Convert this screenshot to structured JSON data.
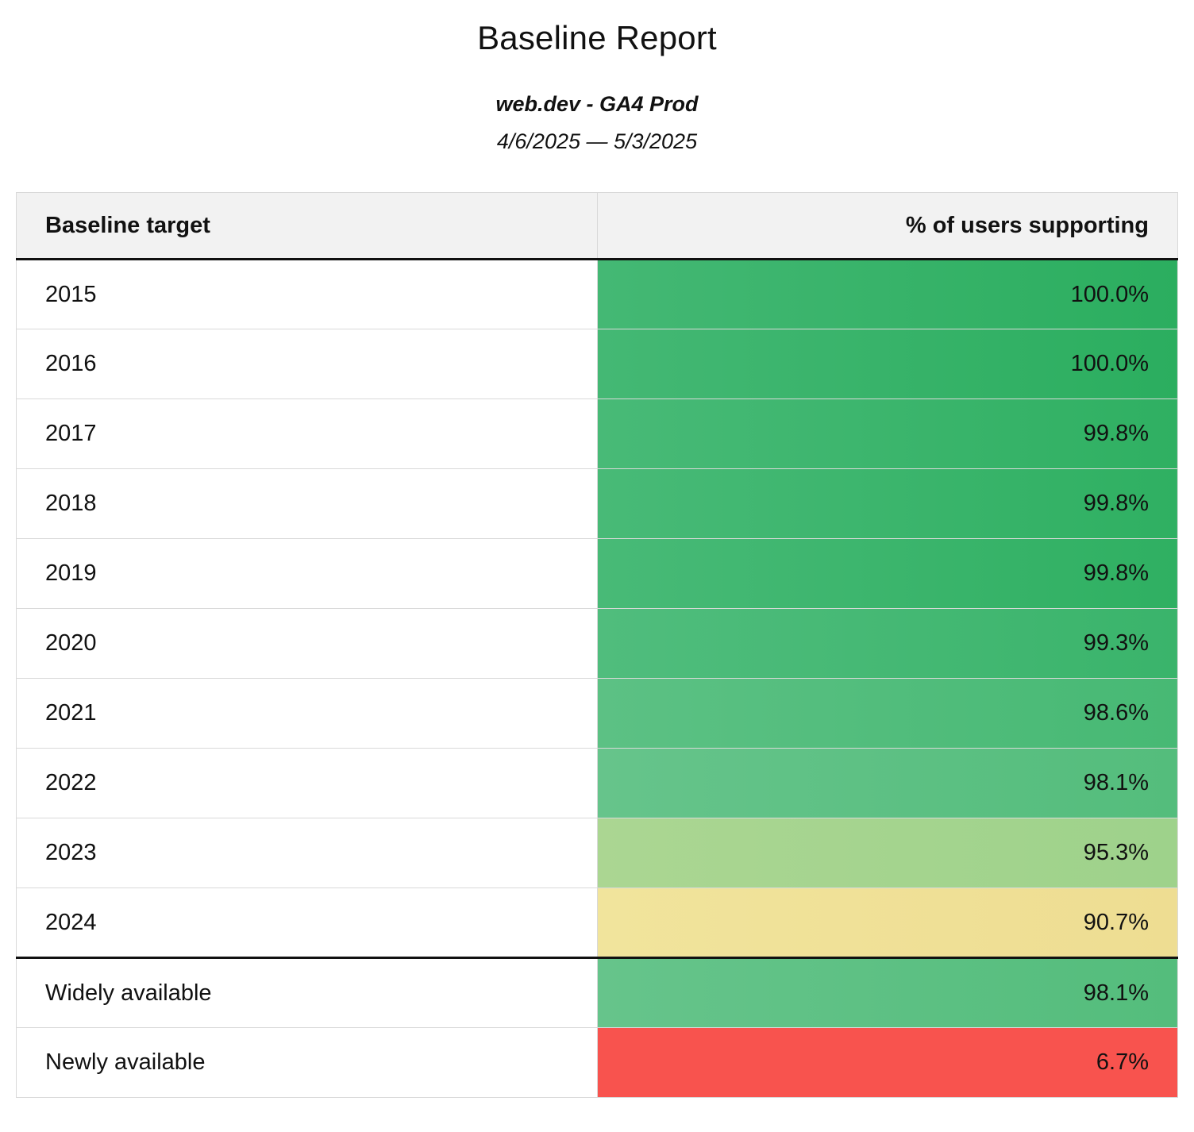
{
  "report": {
    "title": "Baseline Report",
    "subtitle": "web.dev - GA4 Prod",
    "date_range": "4/6/2025 — 5/3/2025"
  },
  "table": {
    "columns": [
      "Baseline target",
      "% of users supporting"
    ],
    "rows": [
      {
        "label": "2015",
        "value": "100.0%",
        "color_start": "#44b874",
        "color_end": "#2bae5f"
      },
      {
        "label": "2016",
        "value": "100.0%",
        "color_start": "#44b874",
        "color_end": "#2bae5f"
      },
      {
        "label": "2017",
        "value": "99.8%",
        "color_start": "#48ba77",
        "color_end": "#2fb062"
      },
      {
        "label": "2018",
        "value": "99.8%",
        "color_start": "#48ba77",
        "color_end": "#2fb062"
      },
      {
        "label": "2019",
        "value": "99.8%",
        "color_start": "#48ba77",
        "color_end": "#2fb062"
      },
      {
        "label": "2020",
        "value": "99.3%",
        "color_start": "#50bd7d",
        "color_end": "#3ab46b"
      },
      {
        "label": "2021",
        "value": "98.6%",
        "color_start": "#5cc184",
        "color_end": "#47b974"
      },
      {
        "label": "2022",
        "value": "98.1%",
        "color_start": "#66c48b",
        "color_end": "#54bd7c"
      },
      {
        "label": "2023",
        "value": "95.3%",
        "color_start": "#abd692",
        "color_end": "#9ed28b"
      },
      {
        "label": "2024",
        "value": "90.7%",
        "color_start": "#f1e49c",
        "color_end": "#eedd92"
      }
    ],
    "summary_rows": [
      {
        "label": "Widely available",
        "value": "98.1%",
        "color_start": "#66c48b",
        "color_end": "#54bd7c"
      },
      {
        "label": "Newly available",
        "value": "6.7%",
        "color_start": "#f8534e",
        "color_end": "#f8534e"
      }
    ]
  },
  "chart_data": {
    "type": "table",
    "title": "Baseline Report",
    "subtitle": "web.dev - GA4 Prod",
    "date_range": "4/6/2025 — 5/3/2025",
    "columns": [
      "Baseline target",
      "% of users supporting"
    ],
    "rows": [
      [
        "2015",
        100.0
      ],
      [
        "2016",
        100.0
      ],
      [
        "2017",
        99.8
      ],
      [
        "2018",
        99.8
      ],
      [
        "2019",
        99.8
      ],
      [
        "2020",
        99.3
      ],
      [
        "2021",
        98.6
      ],
      [
        "2022",
        98.1
      ],
      [
        "2023",
        95.3
      ],
      [
        "2024",
        90.7
      ],
      [
        "Widely available",
        98.1
      ],
      [
        "Newly available",
        6.7
      ]
    ],
    "value_unit": "%",
    "color_scale": {
      "high": "#2bae5f",
      "mid": "#eedd92",
      "low": "#f8534e"
    }
  }
}
